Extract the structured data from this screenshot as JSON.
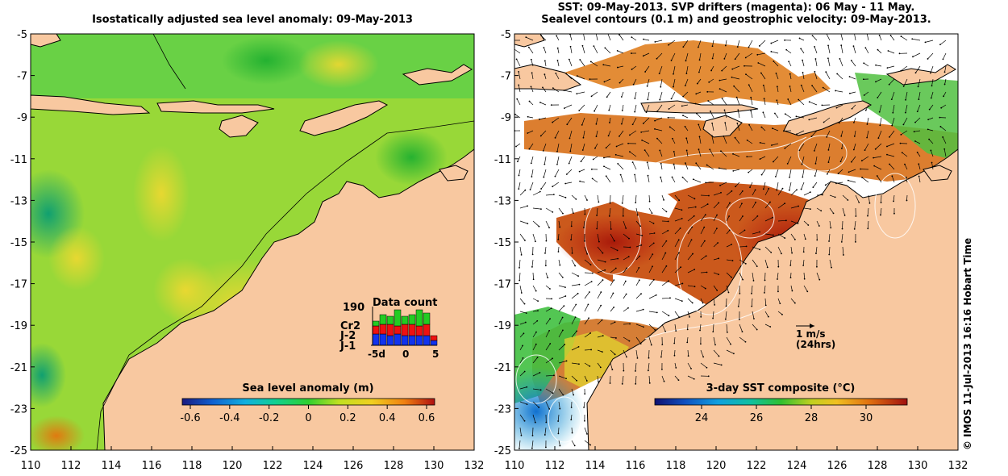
{
  "left_map": {
    "title": "Isostatically adjusted sea level anomaly: 09-May-2013",
    "colorbar_label": "Sea level anomaly (m)",
    "colorbar_ticks": [
      "-0.6",
      "-0.4",
      "-0.2",
      "0",
      "0.2",
      "0.4",
      "0.6"
    ],
    "data_count": {
      "title": "Data count",
      "max_label": "190",
      "satellites": [
        {
          "name": "Cr2",
          "color": "#22cc22"
        },
        {
          "name": "J-2",
          "color": "#ee1111"
        },
        {
          "name": "J-1",
          "color": "#1133ee"
        }
      ],
      "x_ticks": [
        "-5d",
        "0",
        "5"
      ]
    }
  },
  "right_map": {
    "title_line1": "SST: 09-May-2013. SVP drifters (magenta): 06 May - 11 May.",
    "title_line2": "Sealevel contours (0.1 m) and geostrophic velocity: 09-May-2013.",
    "colorbar_label": "3-day SST composite (°C)",
    "colorbar_ticks": [
      "24",
      "26",
      "28",
      "30"
    ],
    "vector_legend_speed": "1 m/s",
    "vector_legend_time": "(24hrs)"
  },
  "axes": {
    "lat_ticks": [
      "-5",
      "-7",
      "-9",
      "-11",
      "-13",
      "-15",
      "-17",
      "-19",
      "-21",
      "-23",
      "-25"
    ],
    "lon_ticks": [
      "110",
      "112",
      "114",
      "116",
      "118",
      "120",
      "122",
      "124",
      "126",
      "128",
      "130",
      "132"
    ]
  },
  "credit": "© IMOS 11-Jul-2013 16:16 Hobart Time"
}
